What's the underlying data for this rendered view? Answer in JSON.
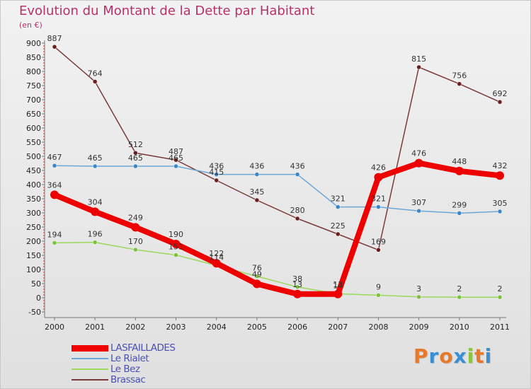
{
  "title": "Evolution du Montant de la Dette par Habitant",
  "subtitle": "(en €)",
  "logo": {
    "text": "Proxiti",
    "colors": [
      "#e8792b",
      "#3a8fd4",
      "#e8792b",
      "#3a8fd4",
      "#8bc43f",
      "#e8792b",
      "#3a8fd4"
    ]
  },
  "chart_data": {
    "type": "line",
    "x": [
      "2000",
      "2001",
      "2002",
      "2003",
      "2004",
      "2005",
      "2006",
      "2007",
      "2008",
      "2009",
      "2010",
      "2011"
    ],
    "ylim": [
      -50,
      900
    ],
    "yticks": [
      -50,
      0,
      50,
      100,
      150,
      200,
      250,
      300,
      350,
      400,
      450,
      500,
      550,
      600,
      650,
      700,
      750,
      800,
      850,
      900
    ],
    "grid": false,
    "legend_position": "bottom-left",
    "series": [
      {
        "name": "LASFAILLADES",
        "color": "#ee0000",
        "dot": "#ee0000",
        "width": 8,
        "values": [
          364,
          304,
          249,
          190,
          122,
          49,
          13,
          13,
          426,
          476,
          448,
          432
        ],
        "labels": [
          "364",
          "304",
          "249",
          "190",
          "122",
          "49",
          "13",
          "13",
          "426",
          "476",
          "448",
          "432"
        ]
      },
      {
        "name": "Le Rialet",
        "color": "#6aa6d8",
        "dot": "#3d86c6",
        "width": 1.5,
        "values": [
          467,
          465,
          465,
          465,
          436,
          436,
          436,
          321,
          321,
          307,
          299,
          305
        ],
        "labels": [
          "467",
          "465",
          "465",
          "465",
          "436",
          "436",
          "436",
          "321",
          "321",
          "307",
          "299",
          "305"
        ]
      },
      {
        "name": "Le Bez",
        "color": "#9ad85a",
        "dot": "#7cc23e",
        "width": 1.5,
        "values": [
          194,
          196,
          170,
          151,
          114,
          76,
          38,
          14,
          9,
          3,
          2,
          2
        ],
        "labels": [
          "194",
          "196",
          "170",
          "151",
          "114",
          "76",
          "38",
          "14",
          "9",
          "3",
          "2",
          "2"
        ]
      },
      {
        "name": "Brassac",
        "color": "#7a3a3a",
        "dot": "#6a1e1e",
        "width": 1.5,
        "values": [
          887,
          764,
          512,
          487,
          415,
          345,
          280,
          225,
          169,
          815,
          756,
          692
        ],
        "labels": [
          "887",
          "764",
          "512",
          "487",
          "415",
          "345",
          "280",
          "225",
          "169",
          "815",
          "756",
          "692"
        ]
      }
    ]
  }
}
